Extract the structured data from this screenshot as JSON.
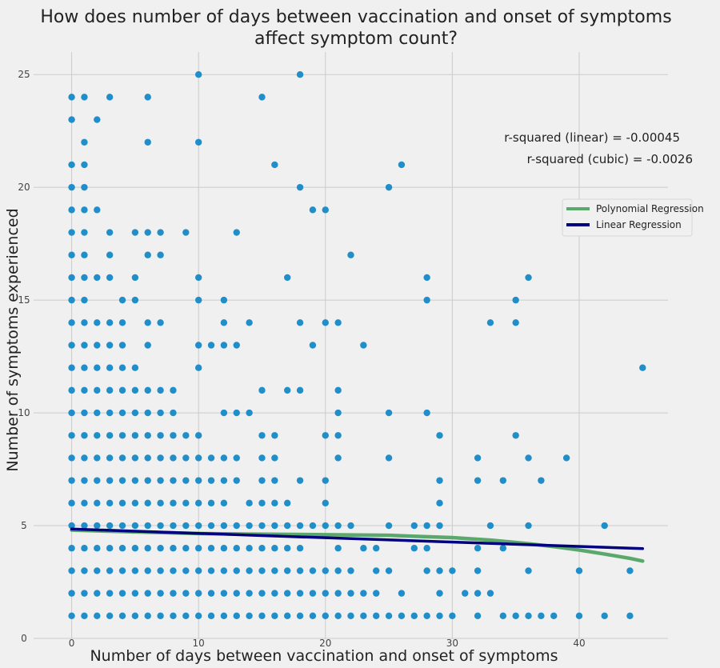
{
  "chart_data": {
    "type": "scatter",
    "title_line1": "How does number of days between vaccination and onset of symptoms",
    "title_line2": "affect symptom count?",
    "xlabel": "Number of days between vaccination and onset of symptoms",
    "ylabel": "Number of symptoms experienced",
    "xlim": [
      -3,
      47
    ],
    "ylim": [
      0,
      26
    ],
    "x_ticks": [
      0,
      10,
      20,
      30,
      40
    ],
    "y_ticks": [
      0,
      5,
      10,
      15,
      20,
      25
    ],
    "grid": true,
    "colors": {
      "points": "#1f8ec9",
      "polynomial": "#5aa86b",
      "linear": "#00007f",
      "background": "#f0f0f0",
      "grid": "#cbcbcb"
    },
    "annotations": [
      "r-squared (linear) = -0.00045",
      "r-squared (cubic) = -0.0026"
    ],
    "legend": {
      "position": "right",
      "entries": [
        "Polynomial Regression",
        "Linear Regression"
      ]
    },
    "points": [
      [
        0,
        1
      ],
      [
        0,
        2
      ],
      [
        0,
        3
      ],
      [
        0,
        4
      ],
      [
        0,
        5
      ],
      [
        0,
        6
      ],
      [
        0,
        7
      ],
      [
        0,
        8
      ],
      [
        0,
        9
      ],
      [
        0,
        10
      ],
      [
        0,
        11
      ],
      [
        0,
        12
      ],
      [
        0,
        13
      ],
      [
        0,
        14
      ],
      [
        0,
        15
      ],
      [
        0,
        16
      ],
      [
        0,
        17
      ],
      [
        0,
        18
      ],
      [
        0,
        19
      ],
      [
        0,
        20
      ],
      [
        0,
        21
      ],
      [
        0,
        23
      ],
      [
        0,
        24
      ],
      [
        1,
        1
      ],
      [
        1,
        2
      ],
      [
        1,
        3
      ],
      [
        1,
        4
      ],
      [
        1,
        5
      ],
      [
        1,
        6
      ],
      [
        1,
        7
      ],
      [
        1,
        8
      ],
      [
        1,
        9
      ],
      [
        1,
        10
      ],
      [
        1,
        11
      ],
      [
        1,
        12
      ],
      [
        1,
        13
      ],
      [
        1,
        14
      ],
      [
        1,
        15
      ],
      [
        1,
        16
      ],
      [
        1,
        17
      ],
      [
        1,
        18
      ],
      [
        1,
        19
      ],
      [
        1,
        20
      ],
      [
        1,
        21
      ],
      [
        1,
        22
      ],
      [
        1,
        24
      ],
      [
        2,
        1
      ],
      [
        2,
        2
      ],
      [
        2,
        3
      ],
      [
        2,
        4
      ],
      [
        2,
        5
      ],
      [
        2,
        6
      ],
      [
        2,
        7
      ],
      [
        2,
        8
      ],
      [
        2,
        9
      ],
      [
        2,
        10
      ],
      [
        2,
        11
      ],
      [
        2,
        12
      ],
      [
        2,
        13
      ],
      [
        2,
        14
      ],
      [
        2,
        16
      ],
      [
        2,
        19
      ],
      [
        2,
        23
      ],
      [
        3,
        1
      ],
      [
        3,
        2
      ],
      [
        3,
        3
      ],
      [
        3,
        4
      ],
      [
        3,
        5
      ],
      [
        3,
        6
      ],
      [
        3,
        7
      ],
      [
        3,
        8
      ],
      [
        3,
        9
      ],
      [
        3,
        10
      ],
      [
        3,
        11
      ],
      [
        3,
        12
      ],
      [
        3,
        13
      ],
      [
        3,
        14
      ],
      [
        3,
        16
      ],
      [
        3,
        17
      ],
      [
        3,
        18
      ],
      [
        3,
        24
      ],
      [
        4,
        1
      ],
      [
        4,
        2
      ],
      [
        4,
        3
      ],
      [
        4,
        4
      ],
      [
        4,
        5
      ],
      [
        4,
        6
      ],
      [
        4,
        7
      ],
      [
        4,
        8
      ],
      [
        4,
        9
      ],
      [
        4,
        10
      ],
      [
        4,
        11
      ],
      [
        4,
        12
      ],
      [
        4,
        13
      ],
      [
        4,
        14
      ],
      [
        4,
        15
      ],
      [
        5,
        1
      ],
      [
        5,
        2
      ],
      [
        5,
        3
      ],
      [
        5,
        4
      ],
      [
        5,
        5
      ],
      [
        5,
        6
      ],
      [
        5,
        7
      ],
      [
        5,
        8
      ],
      [
        5,
        9
      ],
      [
        5,
        10
      ],
      [
        5,
        11
      ],
      [
        5,
        12
      ],
      [
        5,
        15
      ],
      [
        5,
        16
      ],
      [
        5,
        18
      ],
      [
        6,
        1
      ],
      [
        6,
        2
      ],
      [
        6,
        3
      ],
      [
        6,
        4
      ],
      [
        6,
        5
      ],
      [
        6,
        6
      ],
      [
        6,
        7
      ],
      [
        6,
        8
      ],
      [
        6,
        9
      ],
      [
        6,
        10
      ],
      [
        6,
        11
      ],
      [
        6,
        13
      ],
      [
        6,
        14
      ],
      [
        6,
        17
      ],
      [
        6,
        18
      ],
      [
        6,
        22
      ],
      [
        6,
        24
      ],
      [
        7,
        1
      ],
      [
        7,
        2
      ],
      [
        7,
        3
      ],
      [
        7,
        4
      ],
      [
        7,
        5
      ],
      [
        7,
        6
      ],
      [
        7,
        7
      ],
      [
        7,
        8
      ],
      [
        7,
        9
      ],
      [
        7,
        10
      ],
      [
        7,
        11
      ],
      [
        7,
        14
      ],
      [
        7,
        17
      ],
      [
        7,
        18
      ],
      [
        8,
        1
      ],
      [
        8,
        2
      ],
      [
        8,
        3
      ],
      [
        8,
        4
      ],
      [
        8,
        5
      ],
      [
        8,
        6
      ],
      [
        8,
        7
      ],
      [
        8,
        8
      ],
      [
        8,
        9
      ],
      [
        8,
        10
      ],
      [
        8,
        11
      ],
      [
        9,
        1
      ],
      [
        9,
        2
      ],
      [
        9,
        3
      ],
      [
        9,
        4
      ],
      [
        9,
        5
      ],
      [
        9,
        6
      ],
      [
        9,
        7
      ],
      [
        9,
        8
      ],
      [
        9,
        9
      ],
      [
        9,
        18
      ],
      [
        10,
        1
      ],
      [
        10,
        2
      ],
      [
        10,
        3
      ],
      [
        10,
        4
      ],
      [
        10,
        5
      ],
      [
        10,
        6
      ],
      [
        10,
        7
      ],
      [
        10,
        8
      ],
      [
        10,
        9
      ],
      [
        10,
        12
      ],
      [
        10,
        13
      ],
      [
        10,
        15
      ],
      [
        10,
        16
      ],
      [
        10,
        22
      ],
      [
        10,
        25
      ],
      [
        11,
        1
      ],
      [
        11,
        2
      ],
      [
        11,
        3
      ],
      [
        11,
        4
      ],
      [
        11,
        5
      ],
      [
        11,
        6
      ],
      [
        11,
        7
      ],
      [
        11,
        8
      ],
      [
        11,
        13
      ],
      [
        12,
        1
      ],
      [
        12,
        2
      ],
      [
        12,
        3
      ],
      [
        12,
        4
      ],
      [
        12,
        5
      ],
      [
        12,
        6
      ],
      [
        12,
        7
      ],
      [
        12,
        8
      ],
      [
        12,
        10
      ],
      [
        12,
        13
      ],
      [
        12,
        14
      ],
      [
        12,
        15
      ],
      [
        13,
        1
      ],
      [
        13,
        2
      ],
      [
        13,
        3
      ],
      [
        13,
        4
      ],
      [
        13,
        5
      ],
      [
        13,
        7
      ],
      [
        13,
        8
      ],
      [
        13,
        10
      ],
      [
        13,
        13
      ],
      [
        13,
        18
      ],
      [
        14,
        1
      ],
      [
        14,
        2
      ],
      [
        14,
        3
      ],
      [
        14,
        4
      ],
      [
        14,
        5
      ],
      [
        14,
        6
      ],
      [
        14,
        10
      ],
      [
        14,
        14
      ],
      [
        15,
        1
      ],
      [
        15,
        2
      ],
      [
        15,
        3
      ],
      [
        15,
        4
      ],
      [
        15,
        5
      ],
      [
        15,
        6
      ],
      [
        15,
        7
      ],
      [
        15,
        8
      ],
      [
        15,
        9
      ],
      [
        15,
        11
      ],
      [
        15,
        24
      ],
      [
        16,
        1
      ],
      [
        16,
        2
      ],
      [
        16,
        3
      ],
      [
        16,
        4
      ],
      [
        16,
        5
      ],
      [
        16,
        6
      ],
      [
        16,
        7
      ],
      [
        16,
        8
      ],
      [
        16,
        9
      ],
      [
        16,
        21
      ],
      [
        17,
        1
      ],
      [
        17,
        2
      ],
      [
        17,
        3
      ],
      [
        17,
        4
      ],
      [
        17,
        5
      ],
      [
        17,
        6
      ],
      [
        17,
        11
      ],
      [
        17,
        16
      ],
      [
        18,
        1
      ],
      [
        18,
        2
      ],
      [
        18,
        3
      ],
      [
        18,
        4
      ],
      [
        18,
        5
      ],
      [
        18,
        7
      ],
      [
        18,
        11
      ],
      [
        18,
        14
      ],
      [
        18,
        20
      ],
      [
        18,
        25
      ],
      [
        19,
        1
      ],
      [
        19,
        2
      ],
      [
        19,
        3
      ],
      [
        19,
        5
      ],
      [
        19,
        13
      ],
      [
        19,
        19
      ],
      [
        20,
        1
      ],
      [
        20,
        2
      ],
      [
        20,
        3
      ],
      [
        20,
        5
      ],
      [
        20,
        6
      ],
      [
        20,
        7
      ],
      [
        20,
        9
      ],
      [
        20,
        14
      ],
      [
        20,
        19
      ],
      [
        21,
        1
      ],
      [
        21,
        2
      ],
      [
        21,
        3
      ],
      [
        21,
        4
      ],
      [
        21,
        5
      ],
      [
        21,
        8
      ],
      [
        21,
        9
      ],
      [
        21,
        10
      ],
      [
        21,
        11
      ],
      [
        21,
        14
      ],
      [
        22,
        1
      ],
      [
        22,
        2
      ],
      [
        22,
        3
      ],
      [
        22,
        5
      ],
      [
        22,
        17
      ],
      [
        23,
        1
      ],
      [
        23,
        2
      ],
      [
        23,
        4
      ],
      [
        23,
        13
      ],
      [
        24,
        1
      ],
      [
        24,
        2
      ],
      [
        24,
        3
      ],
      [
        24,
        4
      ],
      [
        25,
        1
      ],
      [
        25,
        3
      ],
      [
        25,
        5
      ],
      [
        25,
        8
      ],
      [
        25,
        10
      ],
      [
        25,
        20
      ],
      [
        26,
        1
      ],
      [
        26,
        2
      ],
      [
        26,
        21
      ],
      [
        27,
        1
      ],
      [
        27,
        4
      ],
      [
        27,
        5
      ],
      [
        28,
        1
      ],
      [
        28,
        3
      ],
      [
        28,
        4
      ],
      [
        28,
        5
      ],
      [
        28,
        10
      ],
      [
        28,
        15
      ],
      [
        28,
        16
      ],
      [
        29,
        1
      ],
      [
        29,
        2
      ],
      [
        29,
        3
      ],
      [
        29,
        5
      ],
      [
        29,
        6
      ],
      [
        29,
        7
      ],
      [
        29,
        9
      ],
      [
        30,
        1
      ],
      [
        30,
        3
      ],
      [
        31,
        2
      ],
      [
        32,
        1
      ],
      [
        32,
        2
      ],
      [
        32,
        3
      ],
      [
        32,
        4
      ],
      [
        32,
        7
      ],
      [
        32,
        8
      ],
      [
        33,
        2
      ],
      [
        33,
        5
      ],
      [
        33,
        14
      ],
      [
        34,
        1
      ],
      [
        34,
        4
      ],
      [
        34,
        7
      ],
      [
        35,
        1
      ],
      [
        35,
        9
      ],
      [
        35,
        14
      ],
      [
        35,
        15
      ],
      [
        36,
        1
      ],
      [
        36,
        3
      ],
      [
        36,
        5
      ],
      [
        36,
        8
      ],
      [
        36,
        16
      ],
      [
        37,
        1
      ],
      [
        37,
        7
      ],
      [
        38,
        1
      ],
      [
        39,
        8
      ],
      [
        40,
        1
      ],
      [
        40,
        3
      ],
      [
        42,
        1
      ],
      [
        42,
        5
      ],
      [
        44,
        1
      ],
      [
        44,
        3
      ],
      [
        45,
        12
      ]
    ],
    "linear_regression": {
      "x": [
        0,
        45
      ],
      "y": [
        4.85,
        3.98
      ]
    },
    "polynomial_regression": {
      "x": [
        0,
        5,
        10,
        15,
        20,
        25,
        30,
        33,
        36,
        38,
        40,
        42,
        44,
        45
      ],
      "y": [
        4.8,
        4.72,
        4.65,
        4.62,
        4.6,
        4.57,
        4.47,
        4.36,
        4.2,
        4.07,
        3.92,
        3.74,
        3.55,
        3.43
      ]
    }
  }
}
